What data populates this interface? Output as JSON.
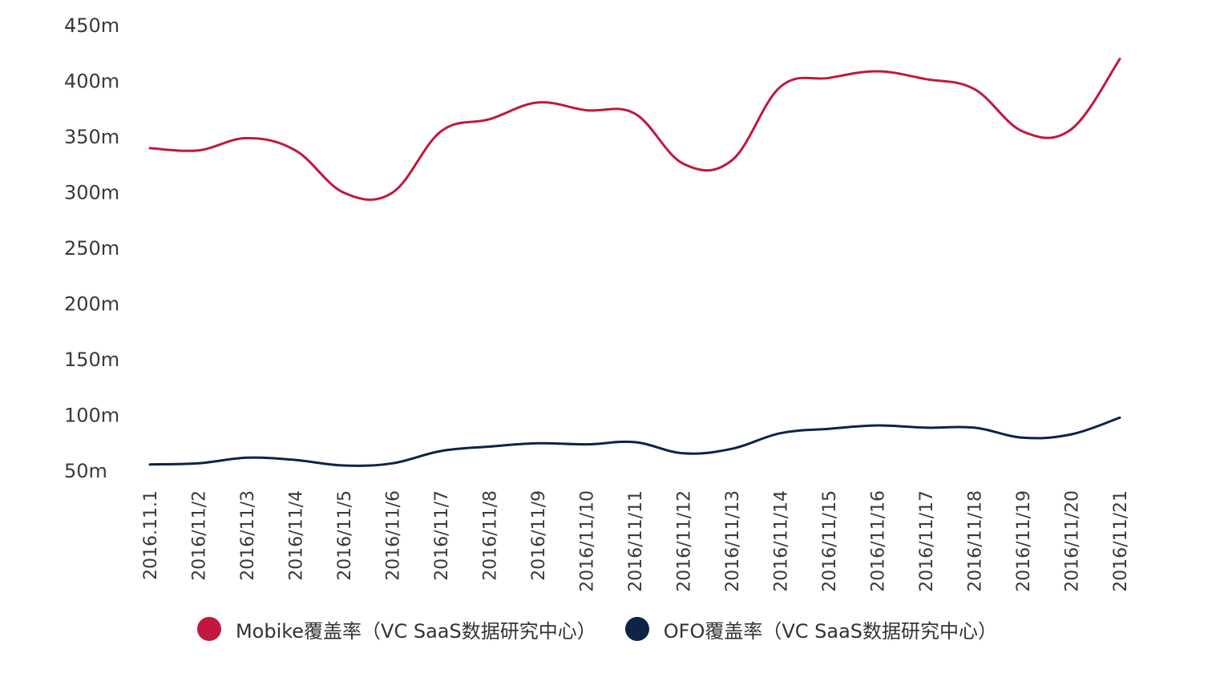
{
  "chart_data": {
    "type": "line",
    "title": "",
    "xlabel": "",
    "ylabel": "",
    "ylim": [
      50,
      450
    ],
    "yticks": [
      "50m",
      "100m",
      "150m",
      "200m",
      "250m",
      "300m",
      "350m",
      "400m",
      "450m"
    ],
    "ytick_values": [
      50,
      100,
      150,
      200,
      250,
      300,
      350,
      400,
      450
    ],
    "categories": [
      "2016.11.1",
      "2016/11/2",
      "2016/11/3",
      "2016/11/4",
      "2016/11/5",
      "2016/11/6",
      "2016/11/7",
      "2016/11/8",
      "2016/11/9",
      "2016/11/10",
      "2016/11/11",
      "2016/11/12",
      "2016/11/13",
      "2016/11/14",
      "2016/11/15",
      "2016/11/16",
      "2016/11/17",
      "2016/11/18",
      "2016/11/19",
      "2016/11/20",
      "2016/11/21"
    ],
    "series": [
      {
        "name": "Mobike覆盖率（VC SaaS数据研究中心）",
        "color": "#c2173e",
        "values": [
          340,
          338,
          349,
          338,
          300,
          300,
          355,
          366,
          381,
          374,
          371,
          326,
          329,
          395,
          403,
          409,
          402,
          393,
          355,
          357,
          420
        ]
      },
      {
        "name": "OFO覆盖率（VC SaaS数据研究中心）",
        "color": "#0d2347",
        "values": [
          56,
          57,
          62,
          60,
          55,
          57,
          68,
          72,
          75,
          74,
          76,
          66,
          70,
          84,
          88,
          91,
          89,
          89,
          80,
          83,
          98
        ]
      }
    ],
    "grid": false,
    "legend_position": "bottom"
  }
}
